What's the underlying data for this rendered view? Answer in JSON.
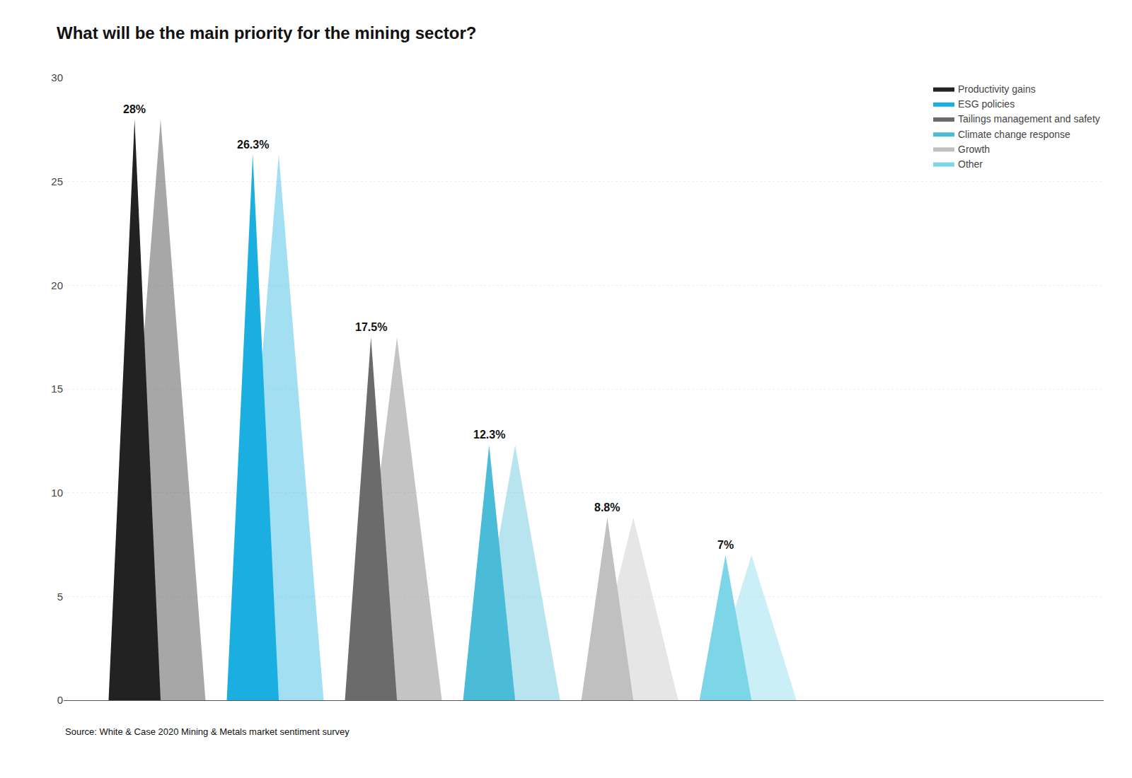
{
  "chart_data": {
    "type": "bar",
    "title": "What will be the main priority for the mining sector?",
    "categories": [
      "Productivity gains",
      "ESG policies",
      "Tailings management and safety",
      "Climate change response",
      "Growth",
      "Other"
    ],
    "values": [
      28.0,
      26.3,
      17.5,
      12.3,
      8.8,
      7.0
    ],
    "value_labels": [
      "28%",
      "26.3%",
      "17.5%",
      "12.3%",
      "8.8%",
      "7%"
    ],
    "colors": [
      "#222222",
      "#1aafe0",
      "#6b6b6b",
      "#4bbcd8",
      "#c0c0c0",
      "#7dd6e8"
    ],
    "ylim": [
      0,
      30
    ],
    "yticks": [
      0,
      5,
      10,
      15,
      20,
      25,
      30
    ],
    "grid": true,
    "legend": "upper right",
    "data_labels": true,
    "tick_labels": "y",
    "annotations": [
      "Source: White & Case 2020 Mining & Metals market sentiment survey"
    ]
  }
}
